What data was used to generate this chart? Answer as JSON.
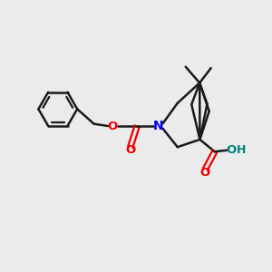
{
  "background_color": "#ebebeb",
  "bond_color": "#1a1a1a",
  "N_color": "#0000ee",
  "O_color": "#ee0000",
  "OH_color": "#008080",
  "line_width": 1.8,
  "figsize": [
    3.0,
    3.0
  ],
  "dpi": 100,
  "xlim": [
    0,
    10
  ],
  "ylim": [
    0,
    10
  ]
}
